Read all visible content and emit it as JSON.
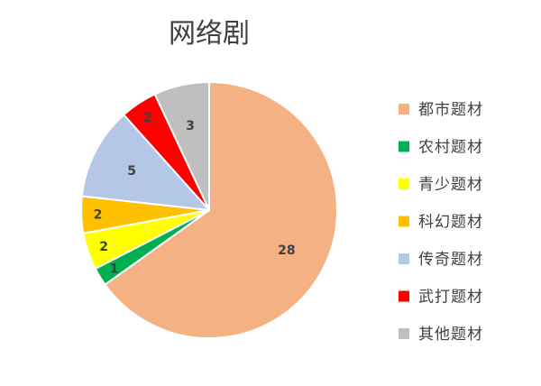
{
  "chart_data": {
    "type": "pie",
    "title": "网络剧",
    "categories": [
      "都市题材",
      "农村题材",
      "青少题材",
      "科幻题材",
      "传奇题材",
      "武打题材",
      "其他题材"
    ],
    "values": [
      28,
      1,
      2,
      2,
      5,
      2,
      3
    ],
    "colors": [
      "#F4B183",
      "#00B050",
      "#FFFF00",
      "#FFC000",
      "#B4C7E7",
      "#FF0000",
      "#BFBFBF"
    ],
    "data_labels": [
      "28",
      "1",
      "2",
      "2",
      "5",
      "2",
      "3"
    ],
    "start_angle_deg": 0,
    "direction": "clockwise",
    "legend_position": "right"
  }
}
